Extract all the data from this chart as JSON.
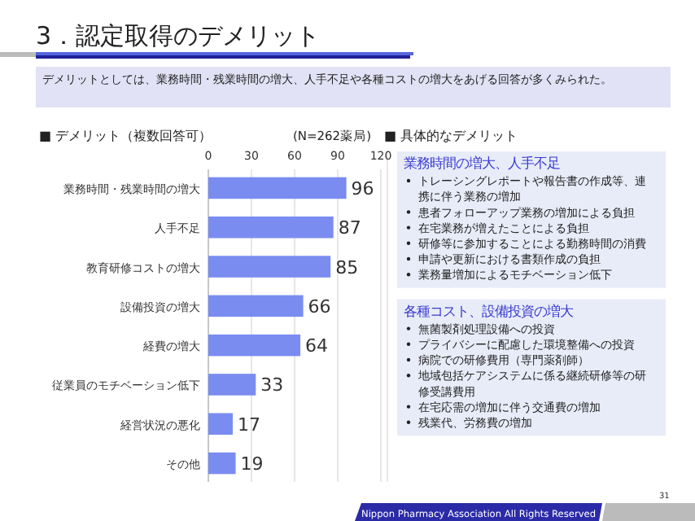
{
  "chart_data": [
    {
      "type": "bar",
      "orientation": "horizontal",
      "title": "3．認定取得のデメリット",
      "subtitle": "デメリットとしては、業務時間・残業時間の増大、人手不足や各種コストの増大をあげる回答が多くみられた。",
      "categories": [
        "業務時間・残業時間の増大",
        "人手不足",
        "教育研修コストの増大",
        "設備投資の増大",
        "経費の増大",
        "従業員のモチベーション低下",
        "経営状況の悪化",
        "その他"
      ],
      "values": [
        96,
        87,
        85,
        66,
        64,
        33,
        17,
        19
      ],
      "color": "#7b8cf0",
      "xlim": [
        0,
        120
      ],
      "xticks": [
        0,
        30,
        60,
        90,
        120
      ],
      "grid": "x",
      "data_labels": true,
      "annotations": [
        "■ デメリット（複数回答可）",
        "(N=262薬局)",
        "Nippon Pharmacy Association All Rights Reserved",
        "31"
      ]
    },
    {
      "type": "other",
      "title": "■ 具体的なデメリット",
      "subtitle": "業務時間の増大、人手不足",
      "annotations": [
        "トレーシングレポートや報告書の作成等、連携に伴う業務の増加",
        "患者フォローアップ業務の増加による負担",
        "在宅業務が増えたことによる負担",
        "研修等に参加することによる勤務時間の消費",
        "申請や更新における書類作成の負担",
        "業務量増加によるモチベーション低下"
      ]
    },
    {
      "type": "other",
      "subtitle": "各種コスト、設備投資の増大",
      "annotations": [
        "無菌製剤処理設備への投資",
        "プライバシーに配慮した環境整備への投資",
        "病院での研修費用（専門薬剤師）",
        "地域包括ケアシステムに係る継続研修等の研修受講費用",
        "在宅応需の増加に伴う交通費の増加",
        "残業代、労務費の増加"
      ]
    }
  ]
}
